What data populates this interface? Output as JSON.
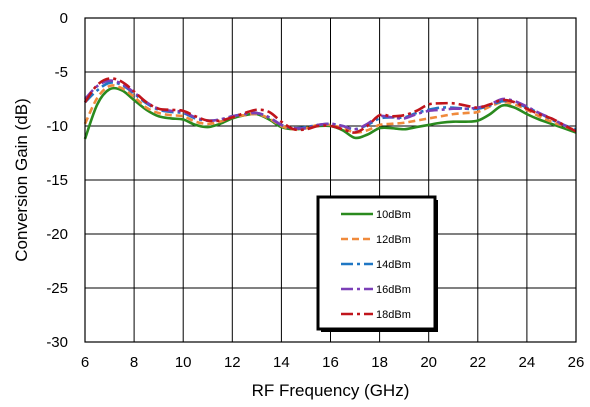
{
  "chart_data": {
    "type": "line",
    "xlabel": "RF Frequency (GHz)",
    "ylabel": "Conversion Gain (dB)",
    "xlim": [
      6,
      26
    ],
    "ylim": [
      -30,
      0
    ],
    "x_ticks": [
      6,
      8,
      10,
      12,
      14,
      16,
      18,
      20,
      22,
      24,
      26
    ],
    "y_ticks": [
      0,
      -5,
      -10,
      -15,
      -20,
      -25,
      -30
    ],
    "grid": true,
    "legend_position": "lower-center",
    "x": [
      6,
      6.5,
      7,
      7.5,
      8,
      8.5,
      9,
      9.5,
      10,
      10.5,
      11,
      11.5,
      12,
      12.5,
      13,
      13.5,
      14,
      14.5,
      15,
      15.5,
      16,
      16.5,
      17,
      17.5,
      18,
      18.5,
      19,
      19.5,
      20,
      20.5,
      21,
      21.5,
      22,
      22.5,
      23,
      23.5,
      24,
      24.5,
      25,
      25.5,
      26
    ],
    "series": [
      {
        "name": "10dBm",
        "color": "#2a8a1e",
        "dash": "solid",
        "values": [
          -11.2,
          -8.0,
          -6.6,
          -6.7,
          -7.6,
          -8.5,
          -9.1,
          -9.3,
          -9.4,
          -9.9,
          -10.1,
          -9.8,
          -9.3,
          -9.0,
          -8.9,
          -9.4,
          -10.1,
          -10.3,
          -10.2,
          -10.0,
          -10.0,
          -10.4,
          -11.1,
          -10.8,
          -10.2,
          -10.2,
          -10.3,
          -10.1,
          -9.9,
          -9.7,
          -9.6,
          -9.6,
          -9.5,
          -8.9,
          -8.1,
          -8.3,
          -8.9,
          -9.4,
          -9.8,
          -10.2,
          -10.6
        ]
      },
      {
        "name": "12dBm",
        "color": "#f08a3c",
        "dash": "dash",
        "values": [
          -9.8,
          -7.4,
          -6.3,
          -6.5,
          -7.3,
          -8.3,
          -8.8,
          -9.0,
          -9.1,
          -9.6,
          -9.8,
          -9.6,
          -9.2,
          -9.0,
          -8.9,
          -9.3,
          -10.0,
          -10.3,
          -10.2,
          -9.9,
          -9.9,
          -10.2,
          -10.6,
          -10.4,
          -9.9,
          -9.8,
          -9.7,
          -9.5,
          -9.3,
          -9.1,
          -8.9,
          -8.8,
          -8.7,
          -8.2,
          -7.8,
          -8.0,
          -8.5,
          -9.1,
          -9.6,
          -10.0,
          -10.4
        ]
      },
      {
        "name": "14dBm",
        "color": "#1f77c4",
        "dash": "dashdot",
        "values": [
          -7.8,
          -6.7,
          -6.0,
          -6.2,
          -7.0,
          -7.9,
          -8.5,
          -8.7,
          -8.8,
          -9.3,
          -9.5,
          -9.4,
          -9.1,
          -8.9,
          -8.8,
          -9.2,
          -9.9,
          -10.2,
          -10.1,
          -9.9,
          -9.8,
          -10.0,
          -10.3,
          -9.9,
          -9.3,
          -9.2,
          -9.2,
          -8.8,
          -8.5,
          -8.3,
          -8.3,
          -8.4,
          -8.4,
          -8.1,
          -7.7,
          -7.8,
          -8.3,
          -8.8,
          -9.4,
          -9.9,
          -10.3
        ]
      },
      {
        "name": "16dBm",
        "color": "#7b3fb7",
        "dash": "dashdot",
        "values": [
          -7.5,
          -6.3,
          -5.8,
          -6.1,
          -6.9,
          -7.8,
          -8.4,
          -8.6,
          -8.7,
          -9.2,
          -9.5,
          -9.4,
          -9.1,
          -8.9,
          -8.8,
          -9.2,
          -9.9,
          -10.2,
          -10.2,
          -9.9,
          -9.8,
          -10.0,
          -10.3,
          -9.8,
          -9.1,
          -9.2,
          -9.3,
          -8.9,
          -8.6,
          -8.5,
          -8.4,
          -8.4,
          -8.3,
          -8.0,
          -7.5,
          -7.7,
          -8.2,
          -8.8,
          -9.3,
          -9.9,
          -10.5
        ]
      },
      {
        "name": "18dBm",
        "color": "#c0151c",
        "dash": "dashdot",
        "values": [
          -7.8,
          -6.2,
          -5.6,
          -5.9,
          -6.8,
          -7.8,
          -8.4,
          -8.5,
          -8.6,
          -9.1,
          -9.5,
          -9.5,
          -9.2,
          -8.8,
          -8.5,
          -8.7,
          -9.6,
          -10.3,
          -10.3,
          -10.0,
          -10.0,
          -10.3,
          -10.6,
          -10.0,
          -9.0,
          -9.1,
          -9.0,
          -8.6,
          -8.0,
          -7.9,
          -7.9,
          -8.1,
          -8.3,
          -8.0,
          -7.6,
          -7.8,
          -8.4,
          -8.9,
          -9.3,
          -9.9,
          -10.5
        ]
      }
    ]
  }
}
